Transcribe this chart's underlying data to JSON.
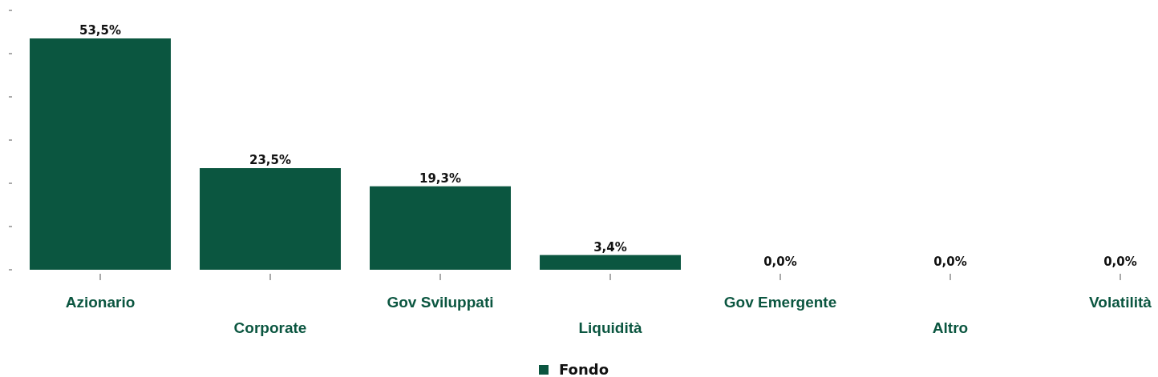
{
  "chart_data": {
    "type": "bar",
    "categories": [
      "Azionario",
      "Corporate",
      "Gov Sviluppati",
      "Liquidità",
      "Gov Emergente",
      "Altro",
      "Volatilità"
    ],
    "series": [
      {
        "name": "Fondo",
        "color": "#0b5640",
        "values": [
          53.5,
          23.5,
          19.3,
          3.4,
          0.0,
          0.0,
          0.0
        ],
        "value_labels": [
          "53,5%",
          "23,5%",
          "19,3%",
          "3,4%",
          "0,0%",
          "0,0%",
          "0,0%"
        ]
      }
    ],
    "tick_labels": "x",
    "legend": "bottom",
    "grid": false
  }
}
